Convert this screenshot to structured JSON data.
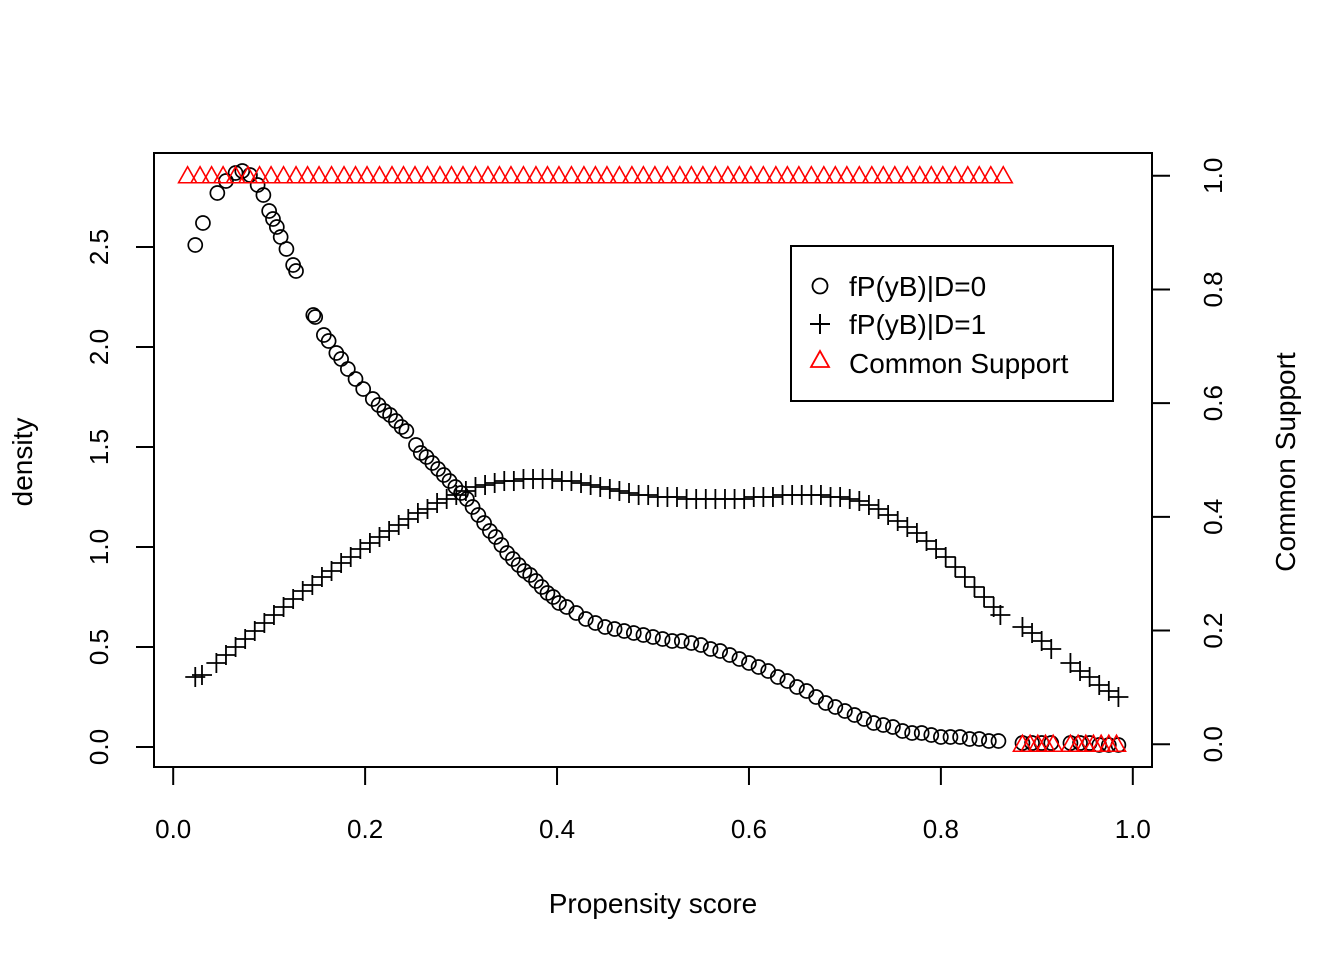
{
  "chart_data": {
    "type": "scatter",
    "xlabel": "Propensity score",
    "ylabel": "density",
    "y2label": "Common Support",
    "xlim": [
      -0.02,
      1.02
    ],
    "ylim": [
      -0.1,
      2.97
    ],
    "y2lim": [
      -0.04,
      1.04
    ],
    "xticks": [
      "0.0",
      "0.2",
      "0.4",
      "0.6",
      "0.8",
      "1.0"
    ],
    "xtick_values": [
      0.0,
      0.2,
      0.4,
      0.6,
      0.8,
      1.0
    ],
    "yticks": [
      "0.0",
      "0.5",
      "1.0",
      "1.5",
      "2.0",
      "2.5"
    ],
    "ytick_values": [
      0.0,
      0.5,
      1.0,
      1.5,
      2.0,
      2.5
    ],
    "y2ticks": [
      "0.0",
      "0.2",
      "0.4",
      "0.6",
      "0.8",
      "1.0"
    ],
    "y2tick_values": [
      0.0,
      0.2,
      0.4,
      0.6,
      0.8,
      1.0
    ],
    "legend_position": "top-right",
    "grid": false,
    "series": [
      {
        "name": "fP(yB)|D=0",
        "marker": "circle",
        "color": "#000000",
        "axis": "left",
        "x": [
          0.023,
          0.031,
          0.046,
          0.055,
          0.065,
          0.072,
          0.08,
          0.088,
          0.094,
          0.1,
          0.104,
          0.108,
          0.112,
          0.118,
          0.125,
          0.128,
          0.146,
          0.148,
          0.157,
          0.162,
          0.17,
          0.175,
          0.182,
          0.19,
          0.198,
          0.208,
          0.214,
          0.22,
          0.226,
          0.232,
          0.238,
          0.243,
          0.253,
          0.258,
          0.264,
          0.27,
          0.276,
          0.282,
          0.288,
          0.294,
          0.3,
          0.306,
          0.312,
          0.318,
          0.324,
          0.33,
          0.336,
          0.342,
          0.348,
          0.354,
          0.36,
          0.366,
          0.372,
          0.378,
          0.384,
          0.39,
          0.396,
          0.402,
          0.41,
          0.42,
          0.43,
          0.44,
          0.45,
          0.46,
          0.47,
          0.48,
          0.49,
          0.5,
          0.51,
          0.52,
          0.53,
          0.54,
          0.55,
          0.56,
          0.57,
          0.58,
          0.59,
          0.6,
          0.61,
          0.62,
          0.63,
          0.64,
          0.65,
          0.66,
          0.67,
          0.68,
          0.69,
          0.7,
          0.71,
          0.72,
          0.73,
          0.74,
          0.75,
          0.76,
          0.77,
          0.78,
          0.79,
          0.8,
          0.81,
          0.82,
          0.83,
          0.84,
          0.85,
          0.86,
          0.885,
          0.895,
          0.905,
          0.915,
          0.935,
          0.945,
          0.955,
          0.965,
          0.975,
          0.985
        ],
        "y": [
          2.51,
          2.62,
          2.77,
          2.83,
          2.87,
          2.88,
          2.86,
          2.81,
          2.76,
          2.68,
          2.64,
          2.6,
          2.55,
          2.49,
          2.41,
          2.38,
          2.16,
          2.15,
          2.06,
          2.03,
          1.97,
          1.94,
          1.89,
          1.84,
          1.79,
          1.74,
          1.71,
          1.68,
          1.66,
          1.63,
          1.6,
          1.58,
          1.51,
          1.47,
          1.45,
          1.42,
          1.39,
          1.36,
          1.33,
          1.3,
          1.27,
          1.24,
          1.2,
          1.16,
          1.12,
          1.08,
          1.05,
          1.01,
          0.97,
          0.94,
          0.91,
          0.88,
          0.86,
          0.83,
          0.8,
          0.77,
          0.75,
          0.72,
          0.7,
          0.67,
          0.64,
          0.62,
          0.6,
          0.59,
          0.58,
          0.57,
          0.56,
          0.55,
          0.54,
          0.53,
          0.53,
          0.52,
          0.51,
          0.49,
          0.48,
          0.46,
          0.44,
          0.42,
          0.4,
          0.38,
          0.35,
          0.33,
          0.3,
          0.28,
          0.25,
          0.22,
          0.2,
          0.18,
          0.16,
          0.14,
          0.12,
          0.11,
          0.1,
          0.08,
          0.07,
          0.07,
          0.06,
          0.05,
          0.05,
          0.05,
          0.04,
          0.04,
          0.03,
          0.03,
          0.02,
          0.02,
          0.02,
          0.02,
          0.02,
          0.02,
          0.02,
          0.01,
          0.01,
          0.01
        ]
      },
      {
        "name": "fP(yB)|D=1",
        "marker": "plus",
        "color": "#000000",
        "axis": "left",
        "x": [
          0.023,
          0.03,
          0.045,
          0.055,
          0.065,
          0.075,
          0.085,
          0.095,
          0.105,
          0.115,
          0.125,
          0.135,
          0.145,
          0.155,
          0.165,
          0.175,
          0.185,
          0.195,
          0.205,
          0.215,
          0.225,
          0.235,
          0.245,
          0.255,
          0.265,
          0.275,
          0.285,
          0.295,
          0.305,
          0.315,
          0.325,
          0.335,
          0.345,
          0.355,
          0.365,
          0.375,
          0.385,
          0.395,
          0.405,
          0.415,
          0.425,
          0.435,
          0.445,
          0.455,
          0.465,
          0.475,
          0.485,
          0.495,
          0.505,
          0.515,
          0.525,
          0.535,
          0.545,
          0.555,
          0.565,
          0.575,
          0.585,
          0.595,
          0.605,
          0.615,
          0.625,
          0.635,
          0.645,
          0.655,
          0.665,
          0.675,
          0.685,
          0.695,
          0.705,
          0.715,
          0.725,
          0.735,
          0.745,
          0.755,
          0.765,
          0.775,
          0.785,
          0.795,
          0.805,
          0.815,
          0.825,
          0.835,
          0.845,
          0.855,
          0.862,
          0.885,
          0.895,
          0.905,
          0.915,
          0.935,
          0.945,
          0.955,
          0.965,
          0.975,
          0.985
        ],
        "y": [
          0.35,
          0.36,
          0.42,
          0.46,
          0.5,
          0.54,
          0.58,
          0.62,
          0.66,
          0.7,
          0.74,
          0.78,
          0.81,
          0.85,
          0.88,
          0.92,
          0.95,
          0.99,
          1.02,
          1.05,
          1.08,
          1.11,
          1.14,
          1.17,
          1.19,
          1.22,
          1.24,
          1.26,
          1.28,
          1.3,
          1.31,
          1.32,
          1.33,
          1.33,
          1.34,
          1.34,
          1.34,
          1.34,
          1.33,
          1.33,
          1.32,
          1.31,
          1.3,
          1.29,
          1.28,
          1.27,
          1.26,
          1.26,
          1.25,
          1.25,
          1.25,
          1.24,
          1.24,
          1.24,
          1.24,
          1.24,
          1.24,
          1.24,
          1.25,
          1.25,
          1.25,
          1.26,
          1.26,
          1.26,
          1.26,
          1.26,
          1.25,
          1.25,
          1.24,
          1.23,
          1.21,
          1.19,
          1.16,
          1.13,
          1.1,
          1.07,
          1.03,
          0.99,
          0.95,
          0.9,
          0.85,
          0.8,
          0.75,
          0.7,
          0.66,
          0.6,
          0.57,
          0.53,
          0.49,
          0.42,
          0.38,
          0.35,
          0.31,
          0.28,
          0.25
        ]
      },
      {
        "name": "Common Support",
        "marker": "triangle",
        "color": "#ff0000",
        "axis": "right",
        "x": [
          0.015,
          0.028,
          0.04,
          0.052,
          0.065,
          0.078,
          0.09,
          0.102,
          0.115,
          0.128,
          0.14,
          0.152,
          0.165,
          0.178,
          0.19,
          0.202,
          0.215,
          0.228,
          0.24,
          0.252,
          0.265,
          0.278,
          0.29,
          0.302,
          0.315,
          0.328,
          0.34,
          0.352,
          0.365,
          0.378,
          0.39,
          0.402,
          0.415,
          0.428,
          0.44,
          0.452,
          0.465,
          0.478,
          0.49,
          0.502,
          0.515,
          0.528,
          0.54,
          0.552,
          0.565,
          0.578,
          0.59,
          0.602,
          0.615,
          0.628,
          0.64,
          0.652,
          0.665,
          0.678,
          0.69,
          0.702,
          0.715,
          0.728,
          0.74,
          0.752,
          0.765,
          0.778,
          0.79,
          0.802,
          0.815,
          0.828,
          0.84,
          0.852,
          0.865,
          0.885,
          0.893,
          0.901,
          0.909,
          0.917,
          0.935,
          0.943,
          0.951,
          0.959,
          0.967,
          0.975,
          0.983
        ],
        "y": [
          1,
          1,
          1,
          1,
          1,
          1,
          1,
          1,
          1,
          1,
          1,
          1,
          1,
          1,
          1,
          1,
          1,
          1,
          1,
          1,
          1,
          1,
          1,
          1,
          1,
          1,
          1,
          1,
          1,
          1,
          1,
          1,
          1,
          1,
          1,
          1,
          1,
          1,
          1,
          1,
          1,
          1,
          1,
          1,
          1,
          1,
          1,
          1,
          1,
          1,
          1,
          1,
          1,
          1,
          1,
          1,
          1,
          1,
          1,
          1,
          1,
          1,
          1,
          1,
          1,
          1,
          1,
          1,
          1,
          0,
          0,
          0,
          0,
          0,
          0,
          0,
          0,
          0,
          0,
          0,
          0
        ]
      }
    ]
  }
}
